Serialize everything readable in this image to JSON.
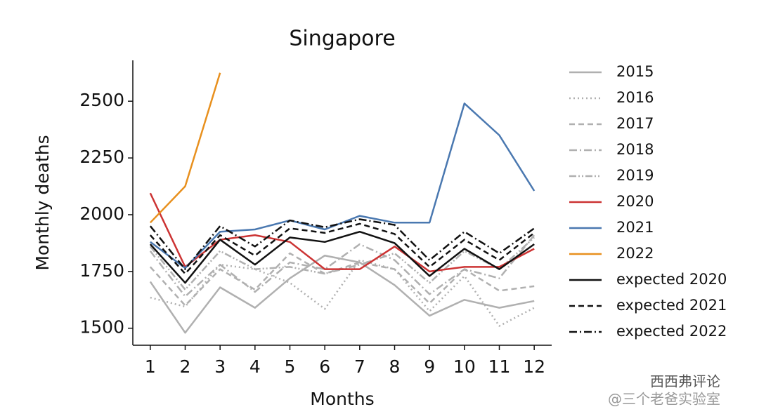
{
  "chart_data": {
    "type": "line",
    "title": "Singapore",
    "xlabel": "Months",
    "ylabel": "Monthly deaths",
    "x": [
      1,
      2,
      3,
      4,
      5,
      6,
      7,
      8,
      9,
      10,
      11,
      12
    ],
    "xlim": [
      0.5,
      12.5
    ],
    "xticks": [
      1,
      2,
      3,
      4,
      5,
      6,
      7,
      8,
      9,
      10,
      11,
      12
    ],
    "ylim": [
      1425,
      2680
    ],
    "yticks": [
      1500,
      1750,
      2000,
      2250,
      2500
    ],
    "legend": "outside right",
    "series": [
      {
        "name": "2015",
        "color": "#b0b0b0",
        "linestyle": "solid",
        "values": [
          1705,
          1480,
          1680,
          1590,
          1720,
          1820,
          1790,
          1690,
          1555,
          1625,
          1590,
          1620
        ]
      },
      {
        "name": "2016",
        "color": "#b0b0b0",
        "linestyle": "dotted",
        "values": [
          1635,
          1595,
          1780,
          1760,
          1700,
          1585,
          1800,
          1760,
          1575,
          1730,
          1510,
          1590
        ]
      },
      {
        "name": "2017",
        "color": "#b0b0b0",
        "linestyle": "dashed",
        "values": [
          1770,
          1600,
          1760,
          1670,
          1830,
          1740,
          1790,
          1760,
          1610,
          1760,
          1665,
          1685
        ]
      },
      {
        "name": "2018",
        "color": "#b0b0b0",
        "linestyle": "dashdot",
        "values": [
          1840,
          1640,
          1780,
          1660,
          1790,
          1760,
          1870,
          1800,
          1650,
          1760,
          1720,
          1910
        ]
      },
      {
        "name": "2019",
        "color": "#b0b0b0",
        "linestyle": "dashdotdot",
        "values": [
          1860,
          1670,
          1840,
          1760,
          1770,
          1740,
          1780,
          1830,
          1700,
          1840,
          1760,
          1900
        ]
      },
      {
        "name": "2020",
        "color": "#cc3333",
        "linestyle": "solid",
        "values": [
          2095,
          1770,
          1890,
          1910,
          1880,
          1760,
          1760,
          1860,
          1750,
          1770,
          1770,
          1850
        ]
      },
      {
        "name": "2021",
        "color": "#4a78b0",
        "linestyle": "solid",
        "values": [
          1880,
          1765,
          1925,
          1935,
          1975,
          1935,
          1995,
          1965,
          1965,
          2490,
          2350,
          2105
        ]
      },
      {
        "name": "2022",
        "color": "#e8901e",
        "linestyle": "solid",
        "values": [
          1965,
          2125,
          2625,
          null,
          null,
          null,
          null,
          null,
          null,
          null,
          null,
          null
        ]
      },
      {
        "name": "expected 2020",
        "color": "#111111",
        "linestyle": "solid",
        "values": [
          1870,
          1700,
          1890,
          1780,
          1900,
          1880,
          1925,
          1875,
          1730,
          1850,
          1760,
          1870
        ]
      },
      {
        "name": "expected 2021",
        "color": "#111111",
        "linestyle": "dashed",
        "values": [
          1910,
          1740,
          1910,
          1820,
          1940,
          1920,
          1960,
          1915,
          1770,
          1890,
          1800,
          1920
        ]
      },
      {
        "name": "expected 2022",
        "color": "#111111",
        "linestyle": "dashdot",
        "values": [
          1950,
          1760,
          1950,
          1860,
          1975,
          1945,
          1980,
          1955,
          1800,
          1925,
          1830,
          1940
        ]
      }
    ],
    "annotations": [
      "西西弗评论",
      "@三个老爸实验室"
    ]
  }
}
